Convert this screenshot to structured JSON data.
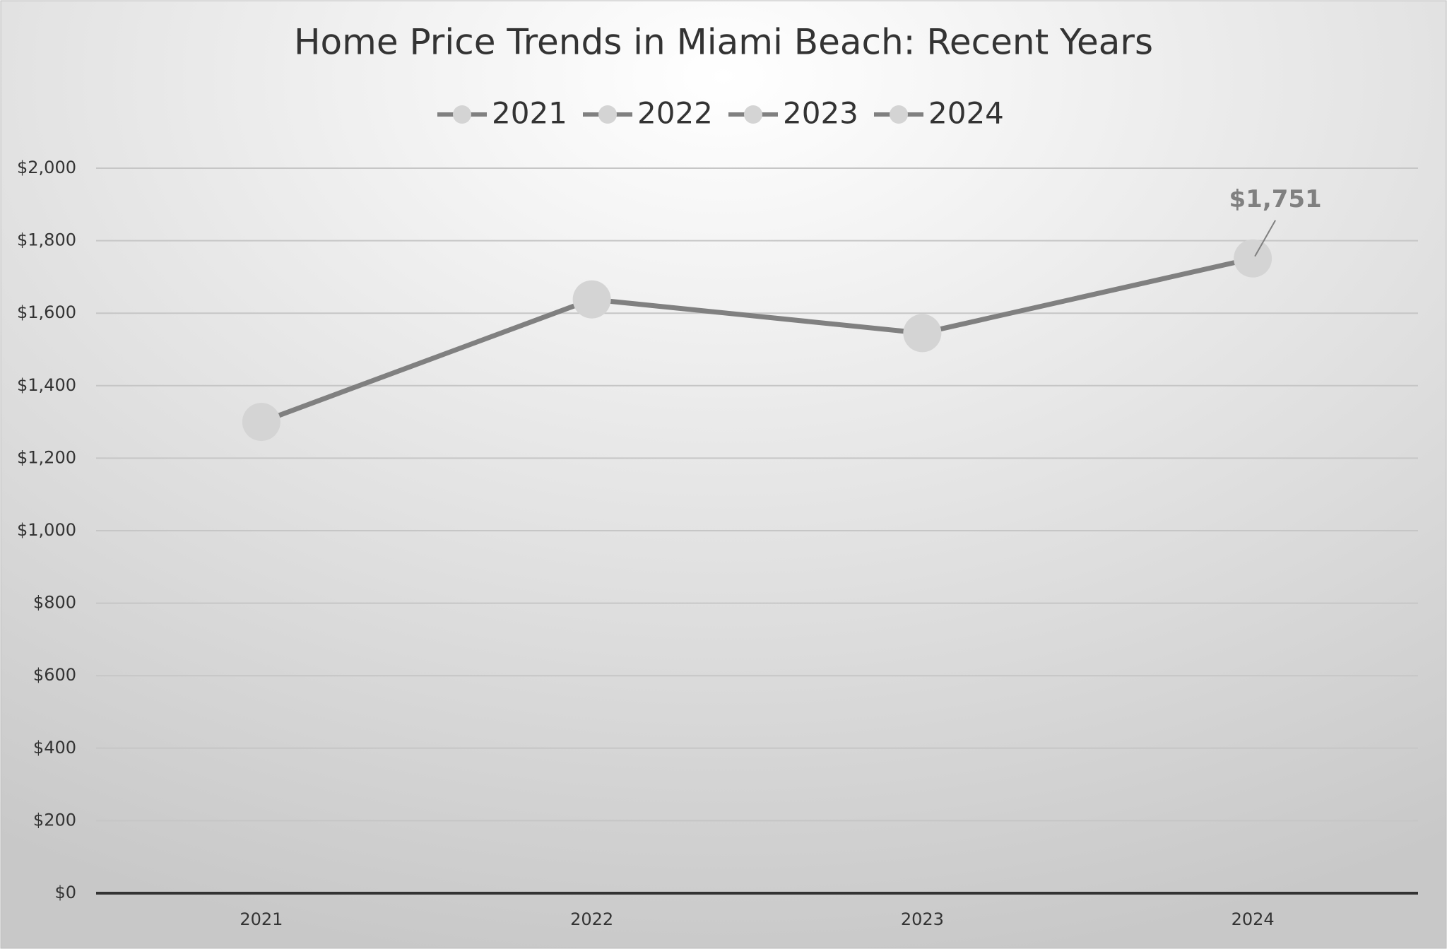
{
  "chart_data": {
    "type": "line",
    "title": "Home Price Trends in Miami Beach: Recent Years",
    "categories": [
      "2021",
      "2022",
      "2023",
      "2024"
    ],
    "values": [
      1300,
      1638,
      1545,
      1751
    ],
    "value_labels": [
      null,
      null,
      null,
      "$1,751"
    ],
    "color": "#808080",
    "marker_color": "#d4d4d4",
    "ylim": [
      0,
      2000
    ],
    "yticks": [
      {
        "value": 0,
        "label": "$0"
      },
      {
        "value": 200,
        "label": "$200"
      },
      {
        "value": 400,
        "label": "$400"
      },
      {
        "value": 600,
        "label": "$600"
      },
      {
        "value": 800,
        "label": "$800"
      },
      {
        "value": 1000,
        "label": "$1,000"
      },
      {
        "value": 1200,
        "label": "$1,200"
      },
      {
        "value": 1400,
        "label": "$1,400"
      },
      {
        "value": 1600,
        "label": "$1,600"
      },
      {
        "value": 1800,
        "label": "$1,800"
      },
      {
        "value": 2000,
        "label": "$2,000"
      }
    ],
    "grid": true,
    "legend": "top"
  }
}
